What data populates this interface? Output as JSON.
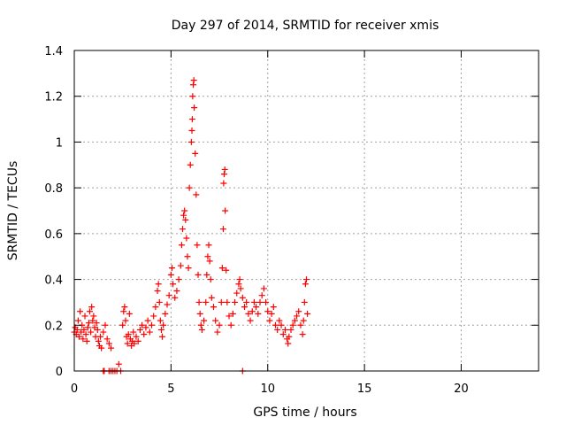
{
  "chart_data": {
    "type": "scatter",
    "title": "Day 297 of 2014, SRMTID for receiver xmis",
    "xlabel": "GPS time / hours",
    "ylabel": "SRMTID / TECUs",
    "xlim": [
      0,
      24
    ],
    "ylim": [
      0,
      1.4
    ],
    "x_ticks": [
      0,
      5,
      10,
      15,
      20
    ],
    "x_tick_labels": [
      "0",
      "5",
      "10",
      "15",
      "20"
    ],
    "y_ticks": [
      0,
      0.2,
      0.4,
      0.6,
      0.8,
      1,
      1.2,
      1.4
    ],
    "y_tick_labels": [
      "0",
      "0.2",
      "0.4",
      "0.6",
      "0.8",
      "1",
      "1.2",
      "1.4"
    ],
    "grid": true,
    "marker": "+",
    "series": [
      {
        "name": "SRMTID",
        "color": "#ff0000",
        "points": [
          [
            0.0,
            0.17
          ],
          [
            0.05,
            0.19
          ],
          [
            0.1,
            0.16
          ],
          [
            0.15,
            0.18
          ],
          [
            0.2,
            0.22
          ],
          [
            0.25,
            0.15
          ],
          [
            0.3,
            0.26
          ],
          [
            0.35,
            0.17
          ],
          [
            0.4,
            0.2
          ],
          [
            0.45,
            0.14
          ],
          [
            0.5,
            0.18
          ],
          [
            0.55,
            0.24
          ],
          [
            0.6,
            0.16
          ],
          [
            0.65,
            0.13
          ],
          [
            0.7,
            0.19
          ],
          [
            0.75,
            0.21
          ],
          [
            0.8,
            0.26
          ],
          [
            0.85,
            0.17
          ],
          [
            0.9,
            0.28
          ],
          [
            0.95,
            0.22
          ],
          [
            1.0,
            0.24
          ],
          [
            1.05,
            0.19
          ],
          [
            1.1,
            0.15
          ],
          [
            1.15,
            0.21
          ],
          [
            1.2,
            0.18
          ],
          [
            1.25,
            0.13
          ],
          [
            1.3,
            0.11
          ],
          [
            1.35,
            0.15
          ],
          [
            1.4,
            0.1
          ],
          [
            1.5,
            0.17
          ],
          [
            1.6,
            0.2
          ],
          [
            1.7,
            0.14
          ],
          [
            1.8,
            0.12
          ],
          [
            1.9,
            0.1
          ],
          [
            2.3,
            0.03
          ],
          [
            2.5,
            0.2
          ],
          [
            2.55,
            0.26
          ],
          [
            2.6,
            0.28
          ],
          [
            2.65,
            0.22
          ],
          [
            2.7,
            0.15
          ],
          [
            2.75,
            0.12
          ],
          [
            2.8,
            0.16
          ],
          [
            2.85,
            0.25
          ],
          [
            2.9,
            0.14
          ],
          [
            2.95,
            0.11
          ],
          [
            3.0,
            0.13
          ],
          [
            3.05,
            0.17
          ],
          [
            3.1,
            0.12
          ],
          [
            3.2,
            0.15
          ],
          [
            3.3,
            0.13
          ],
          [
            3.4,
            0.18
          ],
          [
            3.5,
            0.2
          ],
          [
            3.6,
            0.16
          ],
          [
            3.7,
            0.19
          ],
          [
            3.8,
            0.22
          ],
          [
            3.9,
            0.17
          ],
          [
            4.0,
            0.2
          ],
          [
            4.1,
            0.24
          ],
          [
            4.2,
            0.28
          ],
          [
            4.3,
            0.35
          ],
          [
            4.35,
            0.38
          ],
          [
            4.4,
            0.3
          ],
          [
            4.45,
            0.22
          ],
          [
            4.5,
            0.18
          ],
          [
            4.55,
            0.15
          ],
          [
            4.6,
            0.2
          ],
          [
            4.7,
            0.25
          ],
          [
            4.8,
            0.29
          ],
          [
            4.9,
            0.33
          ],
          [
            5.0,
            0.42
          ],
          [
            5.05,
            0.45
          ],
          [
            5.1,
            0.38
          ],
          [
            5.2,
            0.32
          ],
          [
            5.3,
            0.35
          ],
          [
            5.4,
            0.4
          ],
          [
            5.5,
            0.46
          ],
          [
            5.55,
            0.55
          ],
          [
            5.6,
            0.62
          ],
          [
            5.65,
            0.68
          ],
          [
            5.7,
            0.7
          ],
          [
            5.75,
            0.66
          ],
          [
            5.8,
            0.58
          ],
          [
            5.85,
            0.5
          ],
          [
            5.9,
            0.45
          ],
          [
            5.95,
            0.8
          ],
          [
            6.0,
            0.9
          ],
          [
            6.05,
            1.0
          ],
          [
            6.08,
            1.05
          ],
          [
            6.1,
            1.1
          ],
          [
            6.12,
            1.2
          ],
          [
            6.15,
            1.25
          ],
          [
            6.18,
            1.27
          ],
          [
            6.2,
            1.15
          ],
          [
            6.25,
            0.95
          ],
          [
            6.3,
            0.77
          ],
          [
            6.35,
            0.55
          ],
          [
            6.4,
            0.42
          ],
          [
            6.45,
            0.3
          ],
          [
            6.5,
            0.25
          ],
          [
            6.55,
            0.2
          ],
          [
            6.6,
            0.18
          ],
          [
            6.7,
            0.22
          ],
          [
            6.8,
            0.3
          ],
          [
            6.85,
            0.42
          ],
          [
            6.9,
            0.5
          ],
          [
            6.95,
            0.55
          ],
          [
            7.0,
            0.48
          ],
          [
            7.05,
            0.4
          ],
          [
            7.1,
            0.32
          ],
          [
            7.2,
            0.28
          ],
          [
            7.3,
            0.22
          ],
          [
            7.4,
            0.17
          ],
          [
            7.5,
            0.2
          ],
          [
            7.6,
            0.3
          ],
          [
            7.65,
            0.45
          ],
          [
            7.7,
            0.62
          ],
          [
            7.72,
            0.82
          ],
          [
            7.75,
            0.86
          ],
          [
            7.78,
            0.88
          ],
          [
            7.8,
            0.7
          ],
          [
            7.85,
            0.44
          ],
          [
            7.9,
            0.3
          ],
          [
            8.0,
            0.24
          ],
          [
            8.1,
            0.2
          ],
          [
            8.2,
            0.25
          ],
          [
            8.3,
            0.3
          ],
          [
            8.4,
            0.34
          ],
          [
            8.5,
            0.38
          ],
          [
            8.55,
            0.4
          ],
          [
            8.6,
            0.36
          ],
          [
            8.7,
            0.32
          ],
          [
            8.8,
            0.28
          ],
          [
            8.9,
            0.3
          ],
          [
            9.0,
            0.25
          ],
          [
            9.1,
            0.22
          ],
          [
            9.2,
            0.26
          ],
          [
            9.3,
            0.3
          ],
          [
            9.4,
            0.28
          ],
          [
            9.5,
            0.25
          ],
          [
            9.6,
            0.3
          ],
          [
            9.7,
            0.33
          ],
          [
            9.8,
            0.36
          ],
          [
            9.9,
            0.3
          ],
          [
            10.0,
            0.26
          ],
          [
            10.1,
            0.22
          ],
          [
            10.2,
            0.25
          ],
          [
            10.3,
            0.28
          ],
          [
            10.4,
            0.2
          ],
          [
            10.5,
            0.18
          ],
          [
            10.6,
            0.22
          ],
          [
            10.7,
            0.2
          ],
          [
            10.8,
            0.16
          ],
          [
            10.9,
            0.18
          ],
          [
            11.0,
            0.14
          ],
          [
            11.05,
            0.12
          ],
          [
            11.1,
            0.15
          ],
          [
            11.2,
            0.18
          ],
          [
            11.3,
            0.2
          ],
          [
            11.4,
            0.22
          ],
          [
            11.5,
            0.24
          ],
          [
            11.6,
            0.26
          ],
          [
            11.7,
            0.2
          ],
          [
            11.8,
            0.16
          ],
          [
            11.85,
            0.22
          ],
          [
            11.9,
            0.3
          ],
          [
            11.95,
            0.38
          ],
          [
            12.0,
            0.4
          ],
          [
            12.05,
            0.25
          ],
          [
            1.5,
            0.0
          ],
          [
            1.55,
            0.0
          ],
          [
            1.8,
            0.0
          ],
          [
            1.9,
            0.0
          ],
          [
            2.0,
            0.0
          ],
          [
            2.1,
            0.0
          ],
          [
            2.2,
            0.0
          ],
          [
            2.4,
            0.0
          ],
          [
            8.7,
            0.0
          ]
        ]
      }
    ]
  }
}
